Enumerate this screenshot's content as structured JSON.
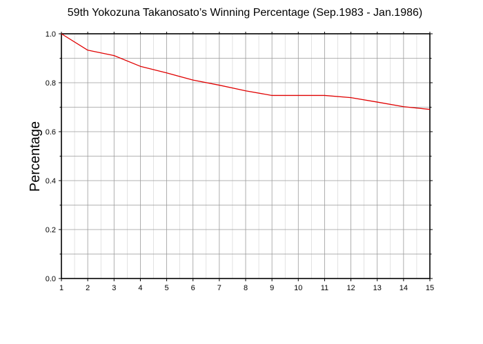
{
  "chart_data": {
    "type": "line",
    "title": "59th Yokozuna Takanosato’s Winning Percentage (Sep.1983 - Jan.1986)",
    "xlabel": "",
    "ylabel": "Percentage",
    "xlim": [
      1,
      15
    ],
    "ylim": [
      0.0,
      1.0
    ],
    "x_ticks": [
      "1",
      "2",
      "3",
      "4",
      "5",
      "6",
      "7",
      "8",
      "9",
      "10",
      "11",
      "12",
      "13",
      "14",
      "15"
    ],
    "y_ticks": [
      "0.0",
      "0.2",
      "0.4",
      "0.6",
      "0.8",
      "1.0"
    ],
    "grid": true,
    "series": [
      {
        "color": "#e00000",
        "x": [
          1,
          2,
          3,
          4,
          5,
          6,
          7,
          8,
          9,
          10,
          11,
          12,
          13,
          14,
          15
        ],
        "y": [
          1.0,
          0.933,
          0.911,
          0.867,
          0.84,
          0.811,
          0.79,
          0.767,
          0.748,
          0.748,
          0.748,
          0.739,
          0.721,
          0.702,
          0.691
        ]
      }
    ]
  }
}
